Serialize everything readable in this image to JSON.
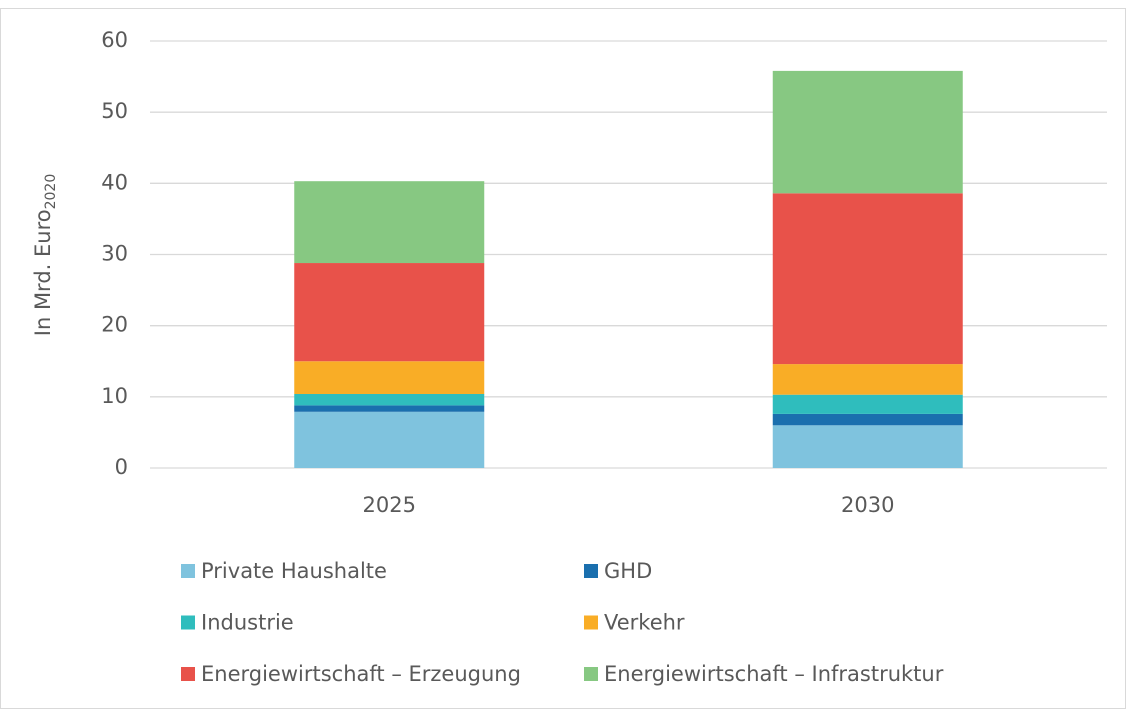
{
  "chart_data": {
    "type": "stacked_bar",
    "ylabel": "In Mrd. Euro",
    "ylabel_subscript": "2020",
    "categories": [
      "2025",
      "2030"
    ],
    "series": [
      {
        "name": "Private Haushalte",
        "color": "#7fc3de",
        "values": [
          7.9,
          6.0
        ]
      },
      {
        "name": "GHD",
        "color": "#1a6fae",
        "values": [
          0.9,
          1.6
        ]
      },
      {
        "name": "Industrie",
        "color": "#2fbdbd",
        "values": [
          1.6,
          2.7
        ]
      },
      {
        "name": "Verkehr",
        "color": "#f9ad26",
        "values": [
          4.6,
          4.3
        ]
      },
      {
        "name": "Energiewirtschaft – Erzeugung",
        "color": "#e8524a",
        "values": [
          13.8,
          24.0
        ]
      },
      {
        "name": "Energiewirtschaft – Infrastruktur",
        "color": "#87c882",
        "values": [
          11.5,
          17.2
        ]
      }
    ],
    "ylim": [
      0,
      60
    ],
    "yticks": [
      0,
      10,
      20,
      30,
      40,
      50,
      60
    ],
    "grid": true,
    "legend": "bottom"
  }
}
